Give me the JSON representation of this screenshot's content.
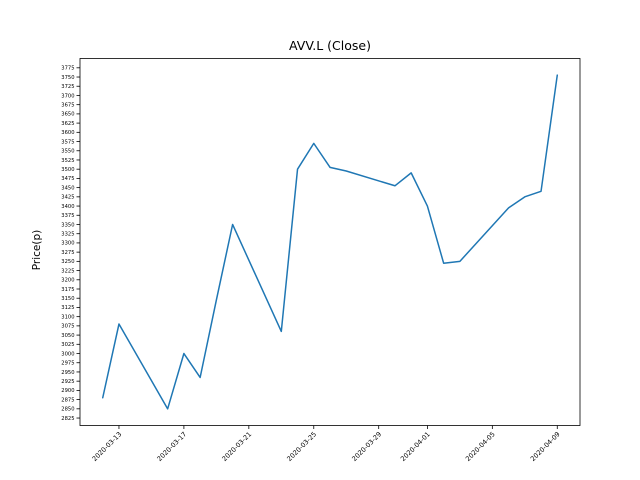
{
  "figure": {
    "background_color": "#ffffff"
  },
  "chart_data": {
    "type": "line",
    "title": "AVV.L (Close)",
    "xlabel": "",
    "ylabel": "Price(p)",
    "grid": false,
    "legend": "none",
    "line_color": "#1f77b4",
    "x_dates": [
      "2020-03-12",
      "2020-03-13",
      "2020-03-16",
      "2020-03-17",
      "2020-03-18",
      "2020-03-19",
      "2020-03-20",
      "2020-03-23",
      "2020-03-24",
      "2020-03-25",
      "2020-03-26",
      "2020-03-27",
      "2020-03-30",
      "2020-03-31",
      "2020-04-01",
      "2020-04-02",
      "2020-04-03",
      "2020-04-06",
      "2020-04-07",
      "2020-04-08",
      "2020-04-09"
    ],
    "values": [
      2880,
      3080,
      2850,
      3000,
      2935,
      3145,
      3350,
      3060,
      3500,
      3570,
      3505,
      3495,
      3455,
      3490,
      3400,
      3245,
      3250,
      3395,
      3425,
      3440,
      3755
    ],
    "x_tick_labels": [
      "2020-03-13",
      "2020-03-17",
      "2020-03-21",
      "2020-03-25",
      "2020-03-29",
      "2020-04-01",
      "2020-04-05",
      "2020-04-09"
    ],
    "y_ticks": [
      2825,
      2850,
      2875,
      2900,
      2925,
      2950,
      2975,
      3000,
      3025,
      3050,
      3075,
      3100,
      3125,
      3150,
      3175,
      3200,
      3225,
      3250,
      3275,
      3300,
      3325,
      3350,
      3375,
      3400,
      3425,
      3450,
      3475,
      3500,
      3525,
      3550,
      3575,
      3600,
      3625,
      3650,
      3675,
      3700,
      3725,
      3750,
      3775
    ],
    "ylim": [
      2804.75,
      3800.25
    ],
    "xlim_days": [
      -1.4,
      29.4
    ]
  }
}
